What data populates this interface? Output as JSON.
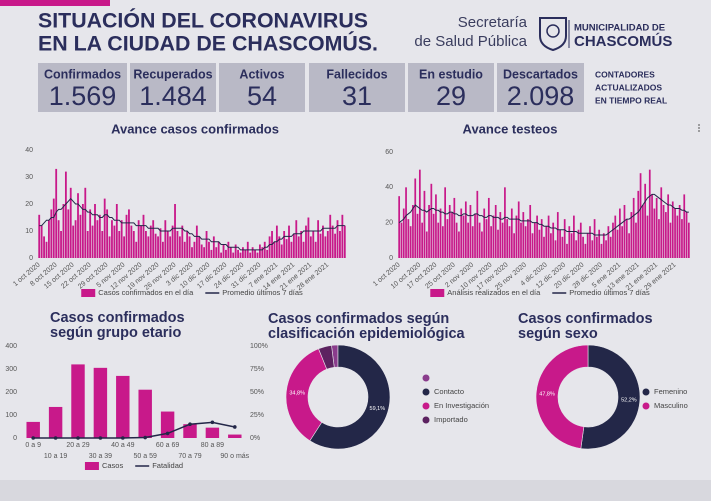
{
  "header": {
    "title": [
      "SITUACIÓN DEL CORONAVIRUS",
      "EN LA CIUDAD DE CHASCOMÚS."
    ],
    "secretaria": [
      "Secretaría",
      "de Salud Pública"
    ],
    "municipalidad": [
      "MUNICIPALIDAD DE",
      "CHASCOMÚS"
    ]
  },
  "counters": [
    {
      "label": "Confirmados",
      "value": "1.569"
    },
    {
      "label": "Recuperados",
      "value": "1.484"
    },
    {
      "label": "Activos",
      "value": "54"
    },
    {
      "label": "Fallecidos",
      "value": "31"
    },
    {
      "label": "En estudio",
      "value": "29"
    },
    {
      "label": "Descartados",
      "value": "2.098"
    }
  ],
  "counters_note": [
    "CONTADORES",
    "ACTUALIZADOS",
    "EN TIEMPO REAL"
  ],
  "chart_data": [
    {
      "type": "bar-line",
      "title": "Avance casos confirmados",
      "categories": [
        "1 oct 2020",
        null,
        null,
        null,
        null,
        null,
        null,
        "8 oct 2020",
        null,
        null,
        null,
        null,
        null,
        null,
        "15 oct 2020",
        null,
        null,
        null,
        null,
        null,
        null,
        "22 oct 2020",
        null,
        null,
        null,
        null,
        null,
        null,
        "29 oct 2020",
        null,
        null,
        null,
        null,
        null,
        null,
        "5 nov 2020",
        null,
        null,
        null,
        null,
        null,
        null,
        "12 nov 2020",
        null,
        null,
        null,
        null,
        null,
        null,
        "19 nov 2020",
        null,
        null,
        null,
        null,
        null,
        null,
        "26 nov 2020",
        null,
        null,
        null,
        null,
        null,
        null,
        "3 dic 2020",
        null,
        null,
        null,
        null,
        null,
        null,
        "10 dic 2020",
        null,
        null,
        null,
        null,
        null,
        null,
        "17 dic 2020",
        null,
        null,
        null,
        null,
        null,
        null,
        "24 dic 2020",
        null,
        null,
        null,
        null,
        null,
        null,
        "31 dic 2020",
        null,
        null,
        null,
        null,
        null,
        null,
        "7 ene 2021",
        null,
        null,
        null,
        null,
        null,
        null,
        "14 ene 2021",
        null,
        null,
        null,
        null,
        null,
        null,
        "21 ene 2021",
        null,
        null,
        null,
        null,
        null,
        null,
        "28 ene 2021",
        null,
        null,
        null,
        null,
        null,
        null,
        null
      ],
      "series": [
        {
          "name": "Casos confirmados en el día",
          "type": "bar",
          "color": "#c8198a",
          "values": [
            16,
            12,
            8,
            6,
            14,
            18,
            22,
            33,
            14,
            10,
            20,
            32,
            18,
            26,
            12,
            14,
            24,
            16,
            20,
            26,
            10,
            18,
            12,
            20,
            14,
            16,
            10,
            22,
            18,
            8,
            14,
            12,
            20,
            10,
            14,
            8,
            16,
            18,
            12,
            10,
            6,
            14,
            12,
            16,
            10,
            8,
            12,
            14,
            9,
            8,
            11,
            6,
            14,
            10,
            8,
            12,
            20,
            10,
            8,
            12,
            6,
            10,
            8,
            4,
            6,
            12,
            8,
            5,
            4,
            10,
            6,
            3,
            8,
            4,
            6,
            2,
            5,
            3,
            6,
            4,
            2,
            5,
            3,
            2,
            4,
            3,
            6,
            2,
            4,
            3,
            2,
            5,
            4,
            6,
            3,
            8,
            10,
            6,
            12,
            8,
            5,
            10,
            7,
            12,
            6,
            9,
            14,
            8,
            10,
            6,
            12,
            15,
            8,
            10,
            6,
            14,
            9,
            12,
            8,
            10,
            16,
            12,
            9,
            14,
            10,
            16,
            12
          ]
        },
        {
          "name": "Promedio últimos 7 días",
          "type": "line",
          "color": "#232748",
          "values": [
            12,
            12,
            13,
            14,
            14,
            15,
            15,
            17,
            18,
            18,
            19,
            20,
            21,
            22,
            21,
            20,
            20,
            19,
            18,
            18,
            17,
            17,
            16,
            16,
            16,
            15,
            15,
            16,
            16,
            15,
            15,
            14,
            14,
            14,
            13,
            13,
            13,
            13,
            13,
            13,
            12,
            12,
            12,
            12,
            12,
            11,
            11,
            11,
            11,
            11,
            10,
            10,
            10,
            10,
            10,
            11,
            11,
            11,
            11,
            11,
            10,
            10,
            9,
            9,
            8,
            8,
            8,
            7,
            7,
            7,
            7,
            6,
            6,
            6,
            6,
            5,
            5,
            5,
            4,
            4,
            4,
            4,
            4,
            3,
            3,
            3,
            3,
            3,
            3,
            3,
            3,
            3,
            3,
            4,
            4,
            5,
            5,
            6,
            6,
            7,
            7,
            8,
            8,
            8,
            8,
            9,
            9,
            9,
            9,
            10,
            10,
            10,
            10,
            10,
            10,
            10,
            10,
            11,
            11,
            11,
            11,
            11,
            11,
            12,
            12,
            12,
            12
          ]
        }
      ],
      "ylim": [
        0,
        40
      ],
      "yticks": [
        0,
        10,
        20,
        30,
        40
      ]
    },
    {
      "type": "bar-line",
      "title": "Avance testeos",
      "categories": [
        "1 oct 2020",
        null,
        null,
        null,
        null,
        null,
        null,
        null,
        null,
        "10 oct 2020",
        null,
        null,
        null,
        null,
        null,
        null,
        "17 oct 2020",
        null,
        null,
        null,
        null,
        null,
        null,
        null,
        "25 oct 2020",
        null,
        null,
        null,
        null,
        null,
        null,
        null,
        "2 nov 2020",
        null,
        null,
        null,
        null,
        null,
        null,
        null,
        "10 nov 2020",
        null,
        null,
        null,
        null,
        null,
        null,
        "17 nov 2020",
        null,
        null,
        null,
        null,
        null,
        null,
        null,
        "25 nov 2020",
        null,
        null,
        null,
        null,
        null,
        null,
        null,
        null,
        "4 dic 2020",
        null,
        null,
        null,
        null,
        null,
        null,
        null,
        "12 dic 2020",
        null,
        null,
        null,
        null,
        null,
        null,
        null,
        "20 dic 2020",
        null,
        null,
        null,
        null,
        null,
        null,
        null,
        "28 dic 2020",
        null,
        null,
        null,
        null,
        null,
        null,
        null,
        "5 ene 2021",
        null,
        null,
        null,
        null,
        null,
        null,
        null,
        "13 ene 2021",
        null,
        null,
        null,
        null,
        null,
        null,
        null,
        "21 ene 2021",
        null,
        null,
        null,
        null,
        null,
        null,
        null,
        "29 ene 2021",
        null,
        null,
        null,
        null,
        null,
        null
      ],
      "series": [
        {
          "name": "Análisis realizados en el día",
          "type": "bar",
          "color": "#c8198a",
          "values": [
            35,
            20,
            28,
            40,
            22,
            18,
            30,
            45,
            25,
            50,
            20,
            38,
            15,
            30,
            42,
            25,
            36,
            20,
            28,
            18,
            40,
            22,
            30,
            26,
            34,
            20,
            15,
            28,
            24,
            32,
            20,
            30,
            18,
            25,
            38,
            20,
            15,
            28,
            22,
            34,
            18,
            24,
            30,
            16,
            26,
            20,
            40,
            22,
            18,
            28,
            14,
            24,
            32,
            20,
            26,
            18,
            22,
            30,
            14,
            20,
            24,
            16,
            22,
            12,
            18,
            24,
            14,
            20,
            10,
            26,
            16,
            12,
            22,
            8,
            18,
            14,
            24,
            10,
            16,
            20,
            12,
            8,
            14,
            18,
            10,
            22,
            12,
            16,
            8,
            14,
            10,
            18,
            12,
            20,
            24,
            16,
            28,
            18,
            30,
            22,
            14,
            26,
            34,
            20,
            38,
            48,
            30,
            42,
            24,
            50,
            36,
            28,
            34,
            22,
            40,
            30,
            26,
            36,
            20,
            32,
            28,
            24,
            30,
            22,
            36,
            26,
            20
          ]
        },
        {
          "name": "Promedio últimos 7 días",
          "type": "line",
          "color": "#232748",
          "values": [
            20,
            21,
            22,
            24,
            25,
            26,
            28,
            30,
            29,
            28,
            27,
            27,
            26,
            27,
            28,
            28,
            27,
            27,
            26,
            26,
            25,
            25,
            26,
            26,
            25,
            25,
            24,
            24,
            25,
            25,
            24,
            24,
            24,
            25,
            25,
            24,
            24,
            23,
            23,
            24,
            24,
            23,
            23,
            23,
            22,
            22,
            23,
            23,
            22,
            22,
            22,
            22,
            22,
            21,
            21,
            21,
            21,
            21,
            20,
            20,
            20,
            19,
            19,
            18,
            18,
            18,
            17,
            17,
            17,
            16,
            16,
            16,
            16,
            15,
            15,
            15,
            15,
            15,
            14,
            14,
            14,
            14,
            14,
            14,
            14,
            13,
            13,
            13,
            13,
            13,
            13,
            14,
            15,
            16,
            17,
            18,
            19,
            20,
            21,
            22,
            22,
            23,
            24,
            25,
            26,
            28,
            30,
            32,
            34,
            35,
            36,
            36,
            35,
            34,
            33,
            32,
            31,
            30,
            30,
            29,
            28,
            28,
            28,
            27,
            27,
            26,
            26
          ]
        }
      ],
      "ylim": [
        0,
        60
      ],
      "yticks": [
        0,
        20,
        40,
        60
      ]
    },
    {
      "type": "bar-line",
      "title": [
        "Casos confirmados",
        "según grupo etario"
      ],
      "categories": [
        "0 a 9",
        "10 a 19",
        "20 a 29",
        "30 a 39",
        "40 a 49",
        "50 a 59",
        "60 a 69",
        "70 a 79",
        "80 a 89",
        "90 o más"
      ],
      "series": [
        {
          "name": "Casos",
          "type": "bar",
          "color": "#c8198a",
          "values": [
            70,
            135,
            320,
            305,
            270,
            210,
            115,
            60,
            45,
            15
          ]
        },
        {
          "name": "Fatalidad",
          "type": "line",
          "color": "#232748",
          "axis": "y2",
          "marker": true,
          "values": [
            0,
            0,
            0,
            0,
            0,
            0.5,
            5,
            15,
            17,
            12
          ]
        }
      ],
      "ylim": [
        0,
        400
      ],
      "yticks": [
        0,
        100,
        200,
        300,
        400
      ],
      "y2lim": [
        0,
        100
      ],
      "y2ticks": [
        {
          "value": 0,
          "label": "0%"
        },
        {
          "value": 25,
          "label": "25%"
        },
        {
          "value": 50,
          "label": "50%"
        },
        {
          "value": 75,
          "label": "75%"
        },
        {
          "value": 100,
          "label": "100%"
        }
      ]
    },
    {
      "type": "donut",
      "title": [
        "Casos confirmados según",
        "clasificación epidemiológica"
      ],
      "categories": [
        null,
        "Contacto",
        "En Investigación",
        "Importado"
      ],
      "values": [
        2,
        59.1,
        34.8,
        4.1
      ],
      "value_labels": [
        null,
        "59,1%",
        "34,8%",
        null
      ],
      "colors": [
        "#8a3c8c",
        "#232748",
        "#c8198a",
        "#5c2260"
      ]
    },
    {
      "type": "donut",
      "title": [
        "Casos confirmados",
        "según sexo"
      ],
      "categories": [
        "Femenino",
        "Masculino"
      ],
      "values": [
        52.2,
        47.8
      ],
      "value_labels": [
        "52,2%",
        "47,8%"
      ],
      "colors": [
        "#232748",
        "#c8198a"
      ]
    }
  ]
}
